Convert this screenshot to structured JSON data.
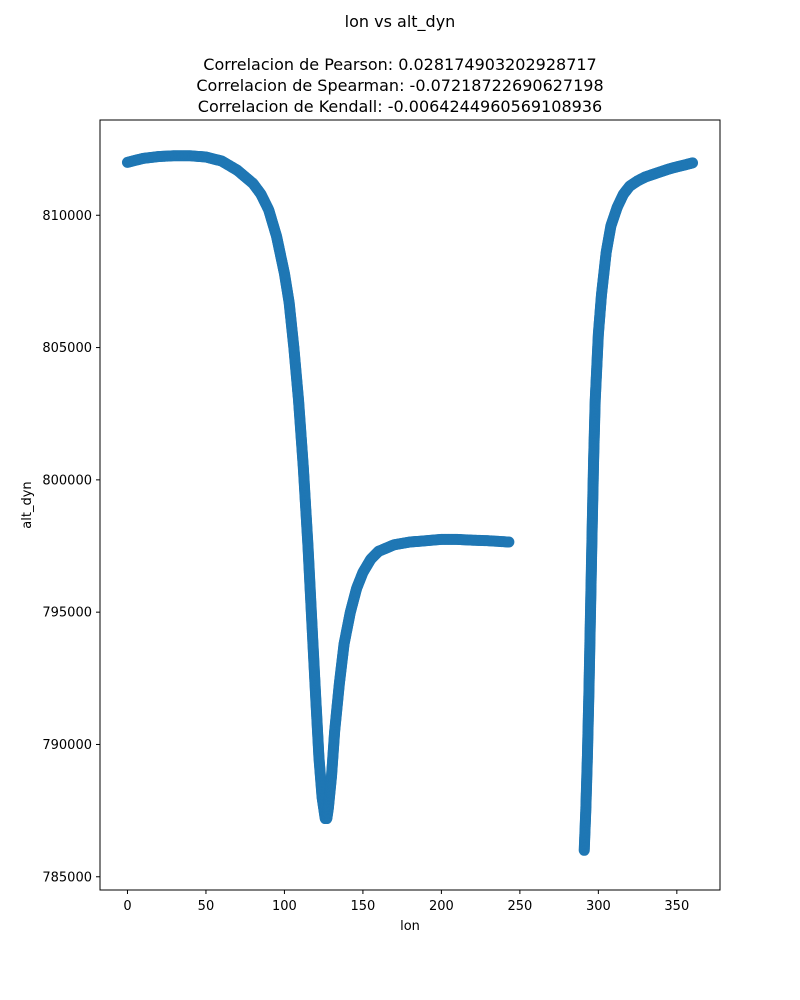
{
  "chart_data": {
    "type": "scatter",
    "title": "lon vs alt_dyn",
    "subtitle_lines": [
      "Correlacion de Pearson: 0.028174903202928717",
      "Correlacion de Spearman: -0.07218722690627198",
      "Correlacion de Kendall: -0.0064244960569108936"
    ],
    "xlabel": "lon",
    "ylabel": "alt_dyn",
    "xlim": [
      -17.5,
      377.5
    ],
    "ylim": [
      784500,
      813600
    ],
    "xticks": [
      0,
      50,
      100,
      150,
      200,
      250,
      300,
      350
    ],
    "yticks": [
      785000,
      790000,
      795000,
      800000,
      805000,
      810000
    ],
    "grid": false,
    "color": "#1f77b4",
    "series": [
      {
        "x": [
          0,
          10,
          20,
          30,
          40,
          50,
          60,
          70,
          80,
          85,
          90,
          95,
          100,
          103,
          106,
          109,
          112,
          115,
          118,
          120,
          122,
          124,
          126,
          127,
          128,
          130,
          132,
          135,
          138,
          142,
          146,
          150,
          155,
          160,
          170,
          180,
          190,
          200,
          210,
          220,
          230,
          243
        ],
        "y": [
          812000,
          812150,
          812220,
          812250,
          812250,
          812200,
          812050,
          811700,
          811200,
          810800,
          810200,
          809200,
          807800,
          806700,
          805000,
          803000,
          800500,
          797500,
          794000,
          791700,
          789500,
          788000,
          787200,
          787200,
          787600,
          788800,
          790500,
          792300,
          793800,
          795000,
          795900,
          796500,
          797000,
          797300,
          797550,
          797650,
          797700,
          797750,
          797750,
          797720,
          797700,
          797650
        ]
      },
      {
        "x": [
          291,
          292,
          293,
          294,
          295,
          296,
          297,
          298,
          300,
          302,
          305,
          308,
          312,
          316,
          320,
          325,
          330,
          335,
          340,
          345,
          350,
          355,
          360
        ],
        "y": [
          786000,
          787500,
          789500,
          792000,
          795000,
          798000,
          800800,
          803000,
          805500,
          807000,
          808600,
          809600,
          810300,
          810800,
          811100,
          811300,
          811450,
          811550,
          811650,
          811750,
          811830,
          811900,
          811980
        ]
      }
    ]
  }
}
